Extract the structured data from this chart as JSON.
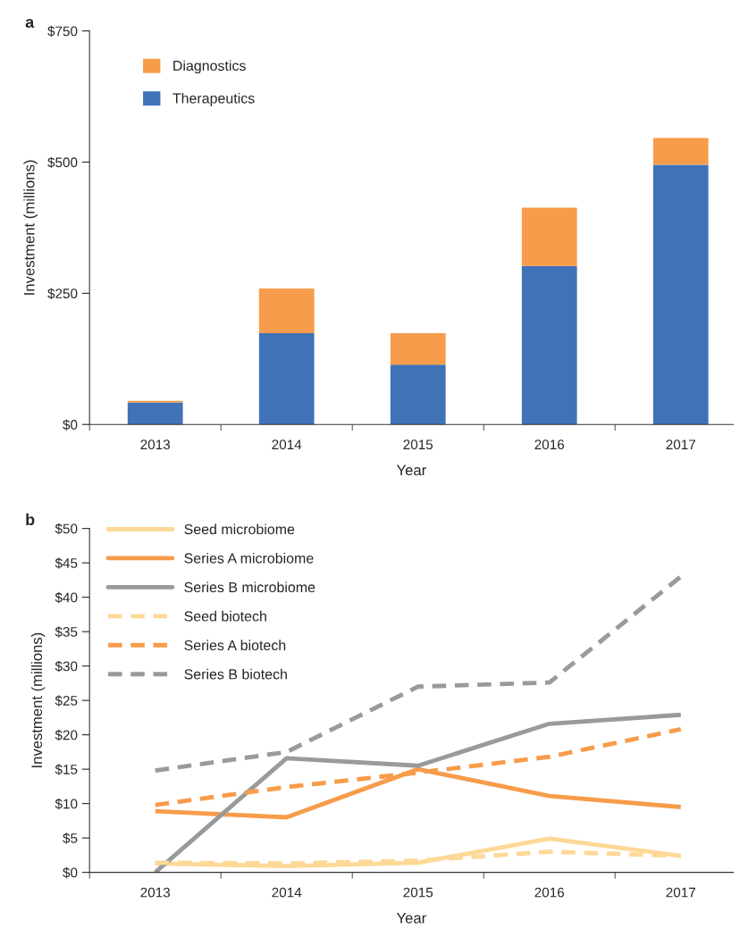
{
  "chart_data": [
    {
      "type": "bar",
      "stacked": true,
      "xlabel": "Year",
      "ylabel": "Investment (millions)",
      "annotations": [
        "a"
      ],
      "categories": [
        "2013",
        "2014",
        "2015",
        "2016",
        "2017"
      ],
      "series": [
        {
          "name": "Therapeutics",
          "color": "#4072b8",
          "values": [
            42,
            174,
            114,
            302,
            495
          ]
        },
        {
          "name": "Diagnostics",
          "color": "#f79c4a",
          "values": [
            3,
            85,
            60,
            111,
            51
          ]
        }
      ],
      "ylim": [
        0,
        750
      ],
      "yticks": [
        {
          "value": 0,
          "label": "$0"
        },
        {
          "value": 250,
          "label": "$250"
        },
        {
          "value": 500,
          "label": "$500"
        },
        {
          "value": 750,
          "label": "$750"
        }
      ],
      "grid": false,
      "legend": "top left"
    },
    {
      "type": "line",
      "xlabel": "Year",
      "ylabel": "Investment (millions)",
      "annotations": [
        "b"
      ],
      "categories": [
        "2013",
        "2014",
        "2015",
        "2016",
        "2017"
      ],
      "series": [
        {
          "name": "Seed microbiome",
          "color": "#fdd897",
          "line_style": "solid",
          "values": [
            1.3,
            0.9,
            1.4,
            4.9,
            2.4
          ]
        },
        {
          "name": "Series A microbiome",
          "color": "#f79c4a",
          "line_style": "solid",
          "values": [
            8.9,
            8.0,
            15.0,
            11.1,
            9.5
          ]
        },
        {
          "name": "Series B microbiome",
          "color": "#999b9a",
          "line_style": "solid",
          "values": [
            0,
            16.6,
            15.5,
            21.6,
            22.9
          ]
        },
        {
          "name": "Seed biotech",
          "color": "#fdd897",
          "line_style": "dashed",
          "values": [
            1.4,
            1.3,
            1.7,
            3.0,
            2.4
          ]
        },
        {
          "name": "Series A biotech",
          "color": "#f79c4a",
          "line_style": "dashed",
          "values": [
            9.8,
            12.4,
            14.5,
            16.8,
            20.8
          ]
        },
        {
          "name": "Series B biotech",
          "color": "#999b9a",
          "line_style": "dashed",
          "values": [
            14.8,
            17.5,
            27.0,
            27.6,
            43.0
          ]
        }
      ],
      "ylim": [
        0,
        50
      ],
      "yticks": [
        {
          "value": 0,
          "label": "$0"
        },
        {
          "value": 5,
          "label": "$5"
        },
        {
          "value": 10,
          "label": "$10"
        },
        {
          "value": 15,
          "label": "$15"
        },
        {
          "value": 20,
          "label": "$20"
        },
        {
          "value": 25,
          "label": "$25"
        },
        {
          "value": 30,
          "label": "$30"
        },
        {
          "value": 35,
          "label": "$35"
        },
        {
          "value": 40,
          "label": "$40"
        },
        {
          "value": 45,
          "label": "$45"
        },
        {
          "value": 50,
          "label": "$50"
        }
      ],
      "grid": false,
      "marker": "none",
      "legend": "top left"
    }
  ]
}
